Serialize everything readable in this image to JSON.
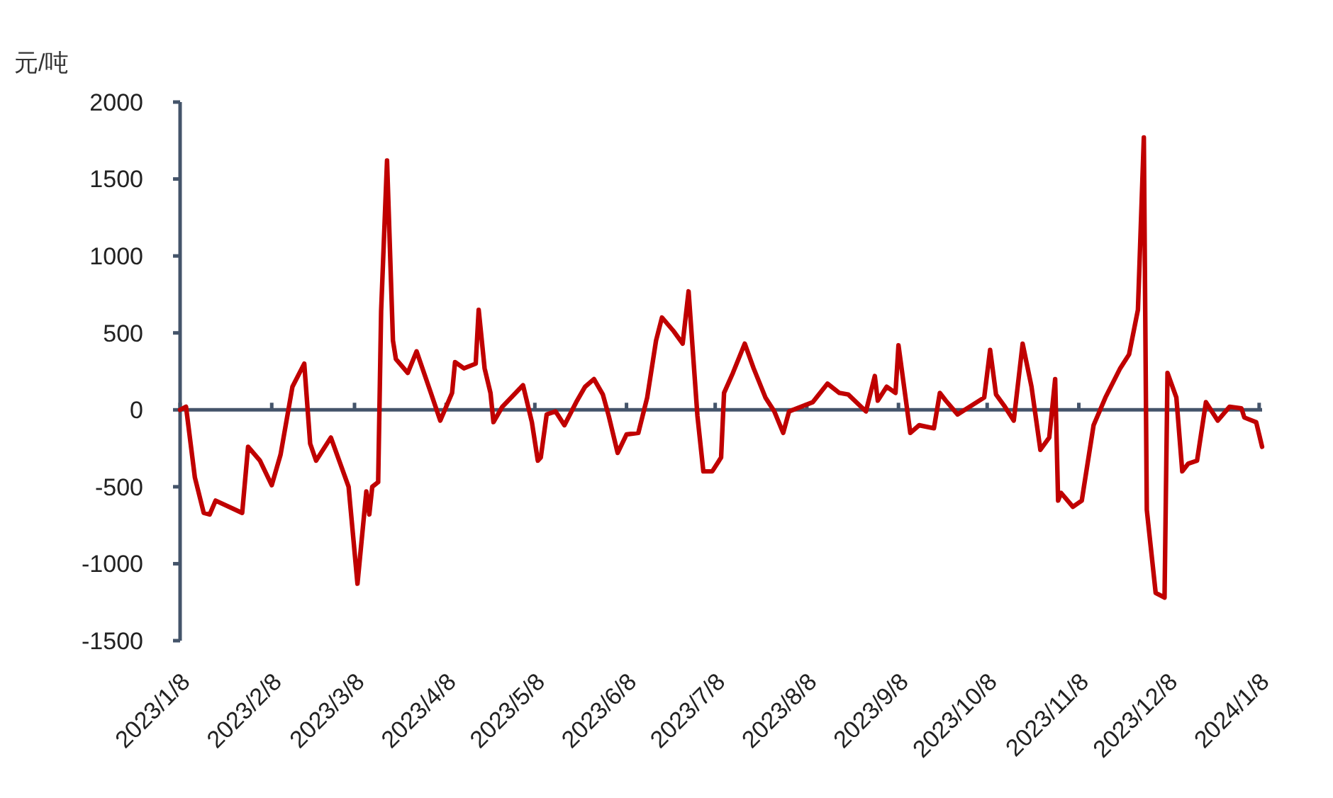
{
  "chart_data": {
    "type": "line",
    "ylabel": "元/吨",
    "color": "#c00000",
    "line_style": "solid",
    "marker": "none",
    "x": [
      "2023-01-08",
      "2023-01-10",
      "2023-01-13",
      "2023-01-16",
      "2023-01-18",
      "2023-01-20",
      "2023-01-29",
      "2023-01-31",
      "2023-02-04",
      "2023-02-08",
      "2023-02-11",
      "2023-02-15",
      "2023-02-19",
      "2023-02-21",
      "2023-02-23",
      "2023-02-28",
      "2023-03-06",
      "2023-03-09",
      "2023-03-12",
      "2023-03-13",
      "2023-03-14",
      "2023-03-16",
      "2023-03-17",
      "2023-03-19",
      "2023-03-21",
      "2023-03-22",
      "2023-03-26",
      "2023-03-29",
      "2023-04-03",
      "2023-04-06",
      "2023-04-10",
      "2023-04-11",
      "2023-04-14",
      "2023-04-18",
      "2023-04-19",
      "2023-04-21",
      "2023-04-23",
      "2023-04-24",
      "2023-04-27",
      "2023-05-04",
      "2023-05-07",
      "2023-05-09",
      "2023-05-10",
      "2023-05-12",
      "2023-05-15",
      "2023-05-18",
      "2023-05-22",
      "2023-05-25",
      "2023-05-28",
      "2023-05-31",
      "2023-06-02",
      "2023-06-05",
      "2023-06-08",
      "2023-06-12",
      "2023-06-15",
      "2023-06-18",
      "2023-06-20",
      "2023-06-24",
      "2023-06-27",
      "2023-06-29",
      "2023-07-02",
      "2023-07-04",
      "2023-07-07",
      "2023-07-10",
      "2023-07-11",
      "2023-07-14",
      "2023-07-18",
      "2023-07-21",
      "2023-07-25",
      "2023-07-28",
      "2023-07-31",
      "2023-08-02",
      "2023-08-10",
      "2023-08-15",
      "2023-08-19",
      "2023-08-22",
      "2023-08-28",
      "2023-08-31",
      "2023-09-01",
      "2023-09-04",
      "2023-09-07",
      "2023-09-08",
      "2023-09-12",
      "2023-09-15",
      "2023-09-20",
      "2023-09-22",
      "2023-09-24",
      "2023-09-28",
      "2023-10-07",
      "2023-10-09",
      "2023-10-11",
      "2023-10-14",
      "2023-10-17",
      "2023-10-20",
      "2023-10-23",
      "2023-10-26",
      "2023-10-29",
      "2023-10-31",
      "2023-11-01",
      "2023-11-02",
      "2023-11-06",
      "2023-11-09",
      "2023-11-13",
      "2023-11-17",
      "2023-11-22",
      "2023-11-25",
      "2023-11-28",
      "2023-11-30",
      "2023-12-01",
      "2023-12-04",
      "2023-12-07",
      "2023-12-08",
      "2023-12-11",
      "2023-12-13",
      "2023-12-15",
      "2023-12-18",
      "2023-12-21",
      "2023-12-25",
      "2023-12-29",
      "2024-01-02",
      "2024-01-03",
      "2024-01-07",
      "2024-01-09"
    ],
    "values": [
      0,
      20,
      -440,
      -670,
      -680,
      -590,
      -670,
      -240,
      -330,
      -490,
      -290,
      150,
      300,
      -220,
      -330,
      -180,
      -500,
      -1130,
      -530,
      -680,
      -500,
      -470,
      640,
      1620,
      450,
      330,
      240,
      380,
      100,
      -70,
      110,
      310,
      270,
      300,
      650,
      270,
      110,
      -80,
      20,
      160,
      -80,
      -330,
      -310,
      -30,
      -10,
      -100,
      50,
      150,
      200,
      100,
      -40,
      -280,
      -160,
      -150,
      80,
      450,
      600,
      510,
      430,
      770,
      -40,
      -400,
      -400,
      -310,
      110,
      240,
      430,
      270,
      80,
      -10,
      -150,
      -10,
      50,
      170,
      110,
      100,
      -10,
      220,
      60,
      150,
      110,
      420,
      -150,
      -100,
      -120,
      110,
      60,
      -30,
      80,
      390,
      100,
      20,
      -70,
      430,
      150,
      -260,
      -180,
      200,
      -590,
      -540,
      -630,
      -590,
      -100,
      80,
      270,
      360,
      650,
      1770,
      -650,
      -1190,
      -1220,
      240,
      80,
      -400,
      -350,
      -330,
      50,
      -70,
      20,
      10,
      -50,
      -80,
      -240
    ],
    "xlim": [
      "2023-01-08",
      "2024-01-09"
    ],
    "xticks": [
      {
        "value": "2023-01-08",
        "label": "2023/1/8"
      },
      {
        "value": "2023-02-08",
        "label": "2023/2/8"
      },
      {
        "value": "2023-03-08",
        "label": "2023/3/8"
      },
      {
        "value": "2023-04-08",
        "label": "2023/4/8"
      },
      {
        "value": "2023-05-08",
        "label": "2023/5/8"
      },
      {
        "value": "2023-06-08",
        "label": "2023/6/8"
      },
      {
        "value": "2023-07-08",
        "label": "2023/7/8"
      },
      {
        "value": "2023-08-08",
        "label": "2023/8/8"
      },
      {
        "value": "2023-09-08",
        "label": "2023/9/8"
      },
      {
        "value": "2023-10-08",
        "label": "2023/10/8"
      },
      {
        "value": "2023-11-08",
        "label": "2023/11/8"
      },
      {
        "value": "2023-12-08",
        "label": "2023/12/8"
      },
      {
        "value": "2024-01-08",
        "label": "2024/1/8"
      }
    ],
    "ylim": [
      -1500,
      2000
    ],
    "yticks": [
      -1500,
      -1000,
      -500,
      0,
      500,
      1000,
      1500,
      2000
    ]
  }
}
